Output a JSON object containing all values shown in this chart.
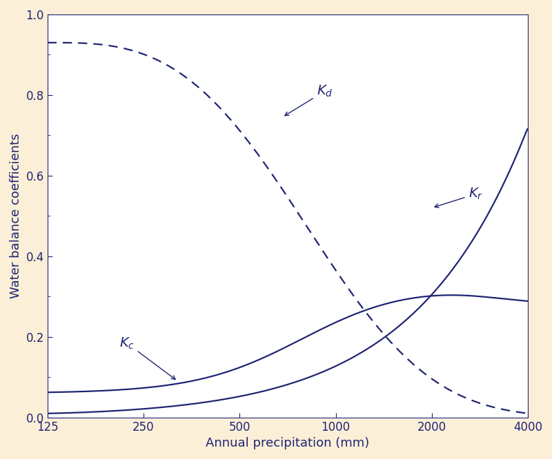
{
  "background_color": "#fcefd8",
  "plot_bg_color": "#ffffff",
  "line_color": "#1e2472",
  "xlabel": "Annual precipitation (mm)",
  "ylabel": "Water balance coefficients",
  "xlim_log": [
    125,
    4000
  ],
  "ylim": [
    0.0,
    1.0
  ],
  "xticks": [
    125,
    250,
    500,
    1000,
    2000,
    4000
  ],
  "yticks": [
    0.0,
    0.2,
    0.4,
    0.6,
    0.8,
    1.0
  ],
  "label_fontsize": 13,
  "tick_fontsize": 12,
  "annotation_fontsize": 14
}
